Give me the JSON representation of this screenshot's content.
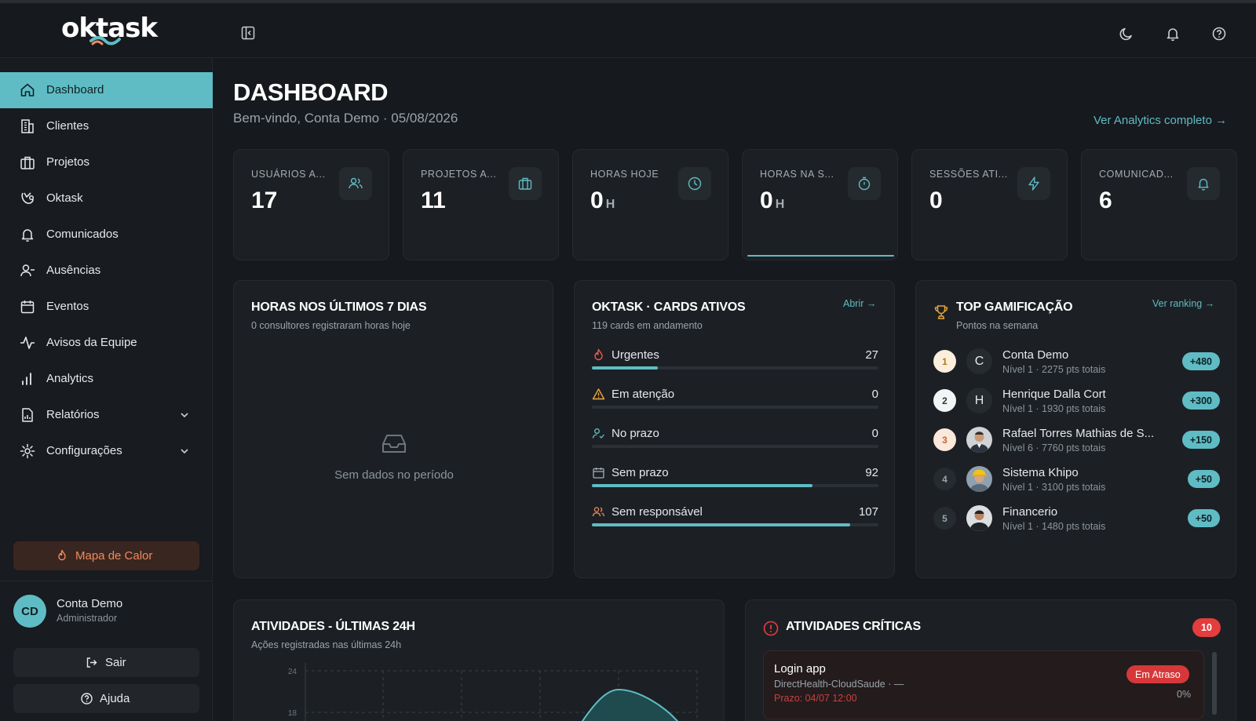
{
  "app": {
    "logo": "oktask",
    "brand_color": "#5fbcc4"
  },
  "topbar": {
    "icons": [
      "sidebar-toggle-icon",
      "moon-icon",
      "bell-icon",
      "help-icon"
    ]
  },
  "sidebar": {
    "items": [
      {
        "label": "Dashboard",
        "icon": "home-icon",
        "active": true
      },
      {
        "label": "Clientes",
        "icon": "building-icon"
      },
      {
        "label": "Projetos",
        "icon": "briefcase-icon"
      },
      {
        "label": "Oktask",
        "icon": "oktask-icon"
      },
      {
        "label": "Comunicados",
        "icon": "bell-icon"
      },
      {
        "label": "Ausências",
        "icon": "user-minus-icon"
      },
      {
        "label": "Eventos",
        "icon": "calendar-icon"
      },
      {
        "label": "Avisos da Equipe",
        "icon": "activity-icon"
      },
      {
        "label": "Analytics",
        "icon": "bar-chart-icon"
      },
      {
        "label": "Relatórios",
        "icon": "report-icon",
        "expandable": true
      },
      {
        "label": "Configurações",
        "icon": "gear-icon",
        "expandable": true
      }
    ],
    "heatmap_button": "Mapa de Calor",
    "user": {
      "initials": "CD",
      "name": "Conta Demo",
      "role": "Administrador"
    },
    "logout_label": "Sair",
    "help_label": "Ajuda"
  },
  "header": {
    "title": "DASHBOARD",
    "subtitle": "Bem-vindo, Conta Demo · 05/08/2026",
    "analytics_link": "Ver Analytics completo →"
  },
  "stats": [
    {
      "label": "USUÁRIOS A...",
      "value": "17",
      "unit": "",
      "icon": "users-icon"
    },
    {
      "label": "PROJETOS A...",
      "value": "11",
      "unit": "",
      "icon": "briefcase-icon"
    },
    {
      "label": "HORAS HOJE",
      "value": "0",
      "unit": "H",
      "icon": "clock-icon"
    },
    {
      "label": "HORAS NA S...",
      "value": "0",
      "unit": "H",
      "icon": "timer-icon",
      "highlight": true
    },
    {
      "label": "SESSÕES ATI...",
      "value": "0",
      "unit": "",
      "icon": "lightning-icon"
    },
    {
      "label": "COMUNICAD...",
      "value": "6",
      "unit": "",
      "icon": "bell-icon"
    }
  ],
  "hours_panel": {
    "title": "HORAS NOS ÚLTIMOS 7 DIAS",
    "subtitle": "0 consultores registraram horas hoje",
    "empty_text": "Sem dados no período"
  },
  "cards_panel": {
    "title": "OKTASK · CARDS ATIVOS",
    "subtitle": "119 cards em andamento",
    "link": "Abrir →",
    "rows": [
      {
        "label": "Urgentes",
        "value": 27,
        "fraction": 0.23,
        "icon": "flame-icon",
        "icon_color": "#ef5a4a"
      },
      {
        "label": "Em atenção",
        "value": 0,
        "fraction": 0,
        "icon": "warning-icon",
        "icon_color": "#f0a73a"
      },
      {
        "label": "No prazo",
        "value": 0,
        "fraction": 0,
        "icon": "user-check-icon",
        "icon_color": "#5fbcc4"
      },
      {
        "label": "Sem prazo",
        "value": 92,
        "fraction": 0.77,
        "icon": "calendar-icon",
        "icon_color": "#a4acb3"
      },
      {
        "label": "Sem responsável",
        "value": 107,
        "fraction": 0.9,
        "icon": "users-icon",
        "icon_color": "#ef8a5e"
      }
    ]
  },
  "gamification_panel": {
    "title": "TOP GAMIFICAÇÃO",
    "subtitle": "Pontos na semana",
    "link": "Ver ranking →",
    "rows": [
      {
        "rank": "1",
        "initial": "C",
        "name": "Conta Demo",
        "meta": "Nível 1 · 2275 pts totais",
        "points": "+480"
      },
      {
        "rank": "2",
        "initial": "H",
        "name": "Henrique Dalla Cort",
        "meta": "Nível 1 · 1930 pts totais",
        "points": "+300"
      },
      {
        "rank": "3",
        "initial": "",
        "name": "Rafael Torres Mathias de S...",
        "meta": "Nível 6 · 7760 pts totais",
        "points": "+150"
      },
      {
        "rank": "4",
        "initial": "",
        "name": "Sistema Khipo",
        "meta": "Nível 1 · 3100 pts totais",
        "points": "+50"
      },
      {
        "rank": "5",
        "initial": "",
        "name": "Financerio",
        "meta": "Nível 1 · 1480 pts totais",
        "points": "+50"
      }
    ]
  },
  "activities_panel": {
    "title": "ATIVIDADES - ÚLTIMAS 24H",
    "subtitle": "Ações registradas nas últimas 24h",
    "chart_data": {
      "type": "area",
      "y_ticks": [
        "24",
        "18"
      ],
      "ylim": [
        0,
        24
      ]
    }
  },
  "critical_panel": {
    "title": "ATIVIDADES CRÍTICAS",
    "count": "10",
    "items": [
      {
        "title": "Login app",
        "subtitle": "DirectHealth-CloudSaude · —",
        "deadline": "Prazo: 04/07 12:00",
        "status": "Em Atraso",
        "progress": "0%"
      }
    ]
  }
}
